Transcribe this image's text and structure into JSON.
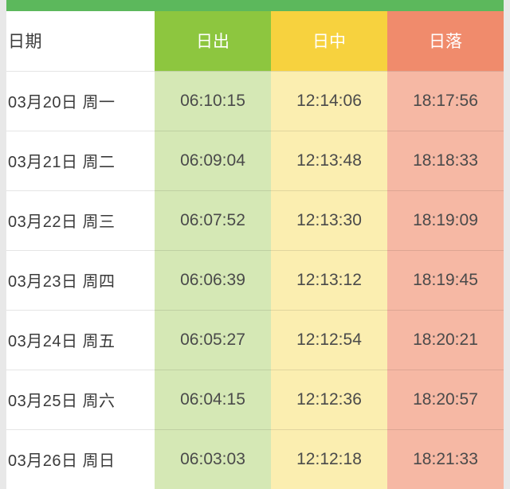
{
  "colors": {
    "topbar": "#5cb85c",
    "sunrise_hdr": "#8dc63f",
    "noon_hdr": "#f7d23e",
    "sunset_hdr": "#f08b6c",
    "sunrise_cell": "#d5e8b5",
    "noon_cell": "#fbeeb0",
    "sunset_cell": "#f6b8a4"
  },
  "table": {
    "type": "table",
    "columns": [
      "日期",
      "日出",
      "日中",
      "日落"
    ],
    "rows": [
      {
        "date": "03月20日 周一",
        "sunrise": "06:10:15",
        "noon": "12:14:06",
        "sunset": "18:17:56"
      },
      {
        "date": "03月21日 周二",
        "sunrise": "06:09:04",
        "noon": "12:13:48",
        "sunset": "18:18:33"
      },
      {
        "date": "03月22日 周三",
        "sunrise": "06:07:52",
        "noon": "12:13:30",
        "sunset": "18:19:09"
      },
      {
        "date": "03月23日 周四",
        "sunrise": "06:06:39",
        "noon": "12:13:12",
        "sunset": "18:19:45"
      },
      {
        "date": "03月24日 周五",
        "sunrise": "06:05:27",
        "noon": "12:12:54",
        "sunset": "18:20:21"
      },
      {
        "date": "03月25日 周六",
        "sunrise": "06:04:15",
        "noon": "12:12:36",
        "sunset": "18:20:57"
      },
      {
        "date": "03月26日 周日",
        "sunrise": "06:03:03",
        "noon": "12:12:18",
        "sunset": "18:21:33"
      }
    ]
  }
}
